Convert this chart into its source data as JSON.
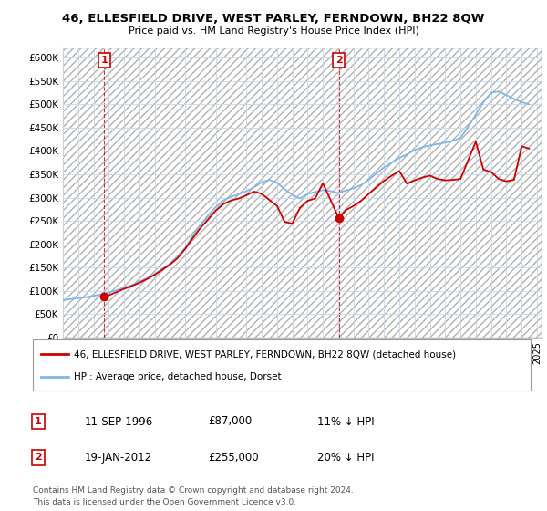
{
  "title": "46, ELLESFIELD DRIVE, WEST PARLEY, FERNDOWN, BH22 8QW",
  "subtitle": "Price paid vs. HM Land Registry's House Price Index (HPI)",
  "legend_line1": "46, ELLESFIELD DRIVE, WEST PARLEY, FERNDOWN, BH22 8QW (detached house)",
  "legend_line2": "HPI: Average price, detached house, Dorset",
  "footnote1": "Contains HM Land Registry data © Crown copyright and database right 2024.",
  "footnote2": "This data is licensed under the Open Government Licence v3.0.",
  "sale1_date": "11-SEP-1996",
  "sale1_price": "£87,000",
  "sale1_hpi": "11% ↓ HPI",
  "sale2_date": "19-JAN-2012",
  "sale2_price": "£255,000",
  "sale2_hpi": "20% ↓ HPI",
  "hpi_color": "#7db8e8",
  "price_color": "#cc0000",
  "ylim_min": 0,
  "ylim_max": 620000,
  "ytick_vals": [
    0,
    50000,
    100000,
    150000,
    200000,
    250000,
    300000,
    350000,
    400000,
    450000,
    500000,
    550000,
    600000
  ],
  "sale1_year": 1996.71,
  "sale1_val": 87000,
  "sale2_year": 2012.05,
  "sale2_val": 255000,
  "hpi_years": [
    1994.0,
    1994.5,
    1995.0,
    1995.5,
    1996.0,
    1996.5,
    1997.0,
    1997.5,
    1998.0,
    1998.5,
    1999.0,
    1999.5,
    2000.0,
    2000.5,
    2001.0,
    2001.5,
    2002.0,
    2002.5,
    2003.0,
    2003.5,
    2004.0,
    2004.5,
    2005.0,
    2005.5,
    2006.0,
    2006.5,
    2007.0,
    2007.5,
    2008.0,
    2008.5,
    2009.0,
    2009.5,
    2010.0,
    2010.5,
    2011.0,
    2011.5,
    2012.0,
    2012.5,
    2013.0,
    2013.5,
    2014.0,
    2014.5,
    2015.0,
    2015.5,
    2016.0,
    2016.5,
    2017.0,
    2017.5,
    2018.0,
    2018.5,
    2019.0,
    2019.5,
    2020.0,
    2020.5,
    2021.0,
    2021.5,
    2022.0,
    2022.5,
    2023.0,
    2023.5,
    2024.0,
    2024.5
  ],
  "hpi_vals": [
    80000,
    82000,
    84000,
    86000,
    89000,
    92000,
    96000,
    101000,
    107000,
    112000,
    119000,
    127000,
    136000,
    147000,
    158000,
    172000,
    192000,
    218000,
    242000,
    262000,
    280000,
    294000,
    302000,
    307000,
    314000,
    322000,
    333000,
    338000,
    332000,
    318000,
    306000,
    298000,
    308000,
    312000,
    316000,
    314000,
    310000,
    315000,
    320000,
    327000,
    338000,
    352000,
    365000,
    375000,
    385000,
    393000,
    402000,
    408000,
    412000,
    415000,
    418000,
    422000,
    428000,
    452000,
    478000,
    505000,
    525000,
    528000,
    520000,
    512000,
    505000,
    500000
  ],
  "red_years": [
    1996.71,
    1997.0,
    1997.5,
    1998.0,
    1998.5,
    1999.0,
    1999.5,
    2000.0,
    2000.5,
    2001.0,
    2001.5,
    2002.0,
    2002.5,
    2003.0,
    2003.5,
    2004.0,
    2004.5,
    2005.0,
    2005.5,
    2006.0,
    2006.5,
    2007.0,
    2007.5,
    2008.0,
    2008.5,
    2009.0,
    2009.5,
    2010.0,
    2010.5,
    2011.0,
    2011.5,
    2012.05,
    2012.5,
    2013.0,
    2013.5,
    2014.0,
    2014.5,
    2015.0,
    2015.5,
    2016.0,
    2016.5,
    2017.0,
    2017.5,
    2018.0,
    2018.5,
    2019.0,
    2019.5,
    2020.0,
    2020.5,
    2021.0,
    2021.5,
    2022.0,
    2022.5,
    2023.0,
    2023.5,
    2024.0,
    2024.5
  ],
  "red_vals": [
    87000,
    90000,
    97000,
    104000,
    110000,
    117000,
    125000,
    134000,
    145000,
    156000,
    170000,
    190000,
    213000,
    235000,
    253000,
    272000,
    286000,
    294000,
    298000,
    305000,
    313000,
    308000,
    295000,
    282000,
    248000,
    244000,
    278000,
    293000,
    298000,
    331000,
    295000,
    255000,
    273000,
    282000,
    293000,
    308000,
    322000,
    336000,
    347000,
    357000,
    330000,
    337000,
    343000,
    347000,
    340000,
    337000,
    338000,
    340000,
    380000,
    420000,
    360000,
    355000,
    340000,
    335000,
    338000,
    410000,
    405000
  ]
}
